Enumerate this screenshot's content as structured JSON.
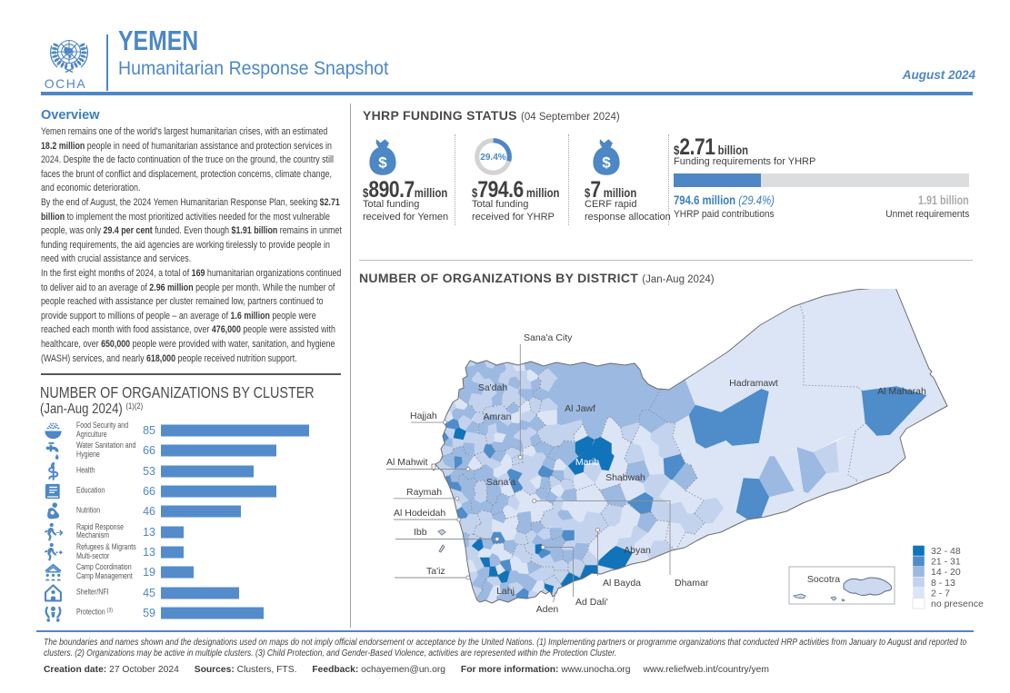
{
  "header": {
    "org": "OCHA",
    "country": "YEMEN",
    "title": "Humanitarian Response Snapshot",
    "date": "August 2024",
    "accent_color": "#4d87c5"
  },
  "overview": {
    "heading": "Overview",
    "paragraphs": [
      [
        {
          "t": "Yemen remains one of the world's largest humanitarian crises, with an estimated "
        },
        {
          "t": "18.2 million",
          "b": 1
        },
        {
          "t": " people in need of humanitarian assistance and protection services in 2024. Despite the de facto continuation of the truce on the ground, the country still faces the brunt of conflict and displacement, protection concerns, climate change, and economic deterioration."
        }
      ],
      [
        {
          "t": "By the end of August, the 2024 Yemen Humanitarian Response Plan, seeking "
        },
        {
          "t": "$2.71 billion",
          "b": 1
        },
        {
          "t": " to implement the most prioritized activities needed for the most vulnerable people, was only "
        },
        {
          "t": "29.4 per cent",
          "b": 1
        },
        {
          "t": " funded. Even though "
        },
        {
          "t": "$1.91 billion",
          "b": 1
        },
        {
          "t": " remains in unmet funding requirements, the aid agencies are working tirelessly to provide people in need with crucial assistance and services."
        }
      ],
      [
        {
          "t": "In the first eight months of 2024, a total of "
        },
        {
          "t": "169",
          "b": 1
        },
        {
          "t": " humanitarian organizations continued to deliver aid to an average of "
        },
        {
          "t": "2.96 million",
          "b": 1
        },
        {
          "t": " people per month. While the number of people reached with assistance per cluster remained low, partners continued to provide support to millions of people – an average of "
        },
        {
          "t": "1.6 million",
          "b": 1
        },
        {
          "t": " people were reached each month with food assistance, over "
        },
        {
          "t": "476,000",
          "b": 1
        },
        {
          "t": "  people were assisted with healthcare, over "
        },
        {
          "t": "650,000",
          "b": 1
        },
        {
          "t": " people were provided with water, sanitation, and hygiene (WASH) services, and nearly "
        },
        {
          "t": "618,000",
          "b": 1
        },
        {
          "t": " people received nutrition support."
        }
      ]
    ]
  },
  "clusters": {
    "title": "NUMBER OF ORGANIZATIONS BY CLUSTER",
    "subtitle": "(Jan-Aug 2024)",
    "note": "(1)(2)",
    "max": 85,
    "bar_color": "#548ccb",
    "rows": [
      {
        "icon": "food-security",
        "label": "Food Security and Agriculture",
        "value": 85
      },
      {
        "icon": "wash",
        "label": "Water Sanitation and Hygiene",
        "value": 66
      },
      {
        "icon": "health",
        "label": "Health",
        "value": 53
      },
      {
        "icon": "education",
        "label": "Education",
        "value": 66
      },
      {
        "icon": "nutrition",
        "label": "Nutrition",
        "value": 46
      },
      {
        "icon": "rapid-response",
        "label": "Rapid Response Mechanism",
        "value": 13
      },
      {
        "icon": "refugees-migrants",
        "label": "Refugees & Migrants Multi-sector",
        "value": 13
      },
      {
        "icon": "camp-coordination",
        "label": "Camp Coordination Camp Management",
        "value": 19
      },
      {
        "icon": "shelter",
        "label": "Shelter/NFI",
        "value": 45
      },
      {
        "icon": "protection",
        "label": "Protection ",
        "note": "(3)",
        "value": 59
      }
    ],
    "chart_data": {
      "type": "bar",
      "categories": [
        "Food Security and Agriculture",
        "Water Sanitation and Hygiene",
        "Health",
        "Education",
        "Nutrition",
        "Rapid Response Mechanism",
        "Refugees & Migrants Multi-sector",
        "Camp Coordination Camp Management",
        "Shelter/NFI",
        "Protection"
      ],
      "values": [
        85,
        66,
        53,
        66,
        46,
        13,
        13,
        19,
        45,
        59
      ],
      "title": "NUMBER OF ORGANIZATIONS BY CLUSTER (Jan-Aug 2024)",
      "xlabel": "",
      "ylabel": "",
      "xlim": [
        0,
        85
      ]
    }
  },
  "funding": {
    "title": "YHRP FUNDING STATUS",
    "date": "(04 September 2024)",
    "cards": [
      {
        "icon": "money-bag",
        "prefix": "$",
        "value": "890.7",
        "unit": "million",
        "desc": "Total funding received for Yemen"
      },
      {
        "icon": "donut",
        "percent": "29.4%",
        "percent_value": 29.4,
        "prefix": "$",
        "value": "794.6",
        "unit": "million",
        "desc": "Total funding received for YHRP"
      },
      {
        "icon": "money-bag",
        "prefix": "$",
        "value": "7",
        "unit": "million",
        "desc": "CERF rapid response allocation"
      }
    ],
    "requirements": {
      "prefix": "$",
      "value": "2.71",
      "unit": "billion",
      "desc": "Funding requirements for YHRP",
      "percent": 29.4,
      "paid": "794.6 million",
      "paid_pct": "(29.4%)",
      "paid_desc": "YHRP paid contributions",
      "unmet": "1.91 billion",
      "unmet_desc": "Unmet requirements",
      "bar_fill_color": "#4d87c5",
      "bar_track_color": "#dcddde"
    }
  },
  "map": {
    "title": "NUMBER OF ORGANIZATIONS BY DISTRICT",
    "subtitle": "(Jan-Aug 2024)",
    "labels": {
      "sanaa_city": "Sana'a City",
      "sadah": "Sa'dah",
      "hajjah": "Hajjah",
      "amran": "Amran",
      "aljawf": "Al Jawf",
      "almahwit": "Al Mahwit",
      "sanaa": "Sana'a",
      "marib": "Marib",
      "shabwah": "Shabwah",
      "hadramawt": "Hadramawt",
      "almaharah": "Al Maharah",
      "raymah": "Raymah",
      "alhodeidah": "Al Hodeidah",
      "ibb": "Ibb",
      "taiz": "Ta'iz",
      "lahj": "Lahj",
      "aden": "Aden",
      "addali": "Ad Dali'",
      "albayda": "Al Bayda",
      "dhamar": "Dhamar",
      "abyan": "Abyan",
      "socotra": "Socotra"
    },
    "legend": [
      {
        "label": "32 - 48",
        "color": "#1173b9"
      },
      {
        "label": "21 - 31",
        "color": "#4e8cca"
      },
      {
        "label": "14 - 20",
        "color": "#9cb9e1"
      },
      {
        "label": "8 - 13",
        "color": "#c3d3ee"
      },
      {
        "label": "2 - 7",
        "color": "#dce5f5"
      },
      {
        "label": "no presence",
        "color": "#ffffff"
      }
    ]
  },
  "footer": {
    "disclaimer": "The boundaries and names shown and the designations used on maps do not imply official endorsement or acceptance by the United Nations. (1) Implementing partners or programme organizations that  conducted HRP activities from January to August  and reported to clusters. (2) Organizations may be active in multiple clusters. (3) Child Protection, and Gender-Based Violence, activities are represented within the Protection Cluster.",
    "creation_label": "Creation date:",
    "creation": "27 October 2024",
    "sources_label": "Sources:",
    "sources": "Clusters, FTS.",
    "feedback_label": "Feedback:",
    "feedback": "ochayemen@un.org",
    "info_label": "For more information:",
    "info1": "www.unocha.org",
    "info2": "www.reliefweb.int/country/yem"
  }
}
